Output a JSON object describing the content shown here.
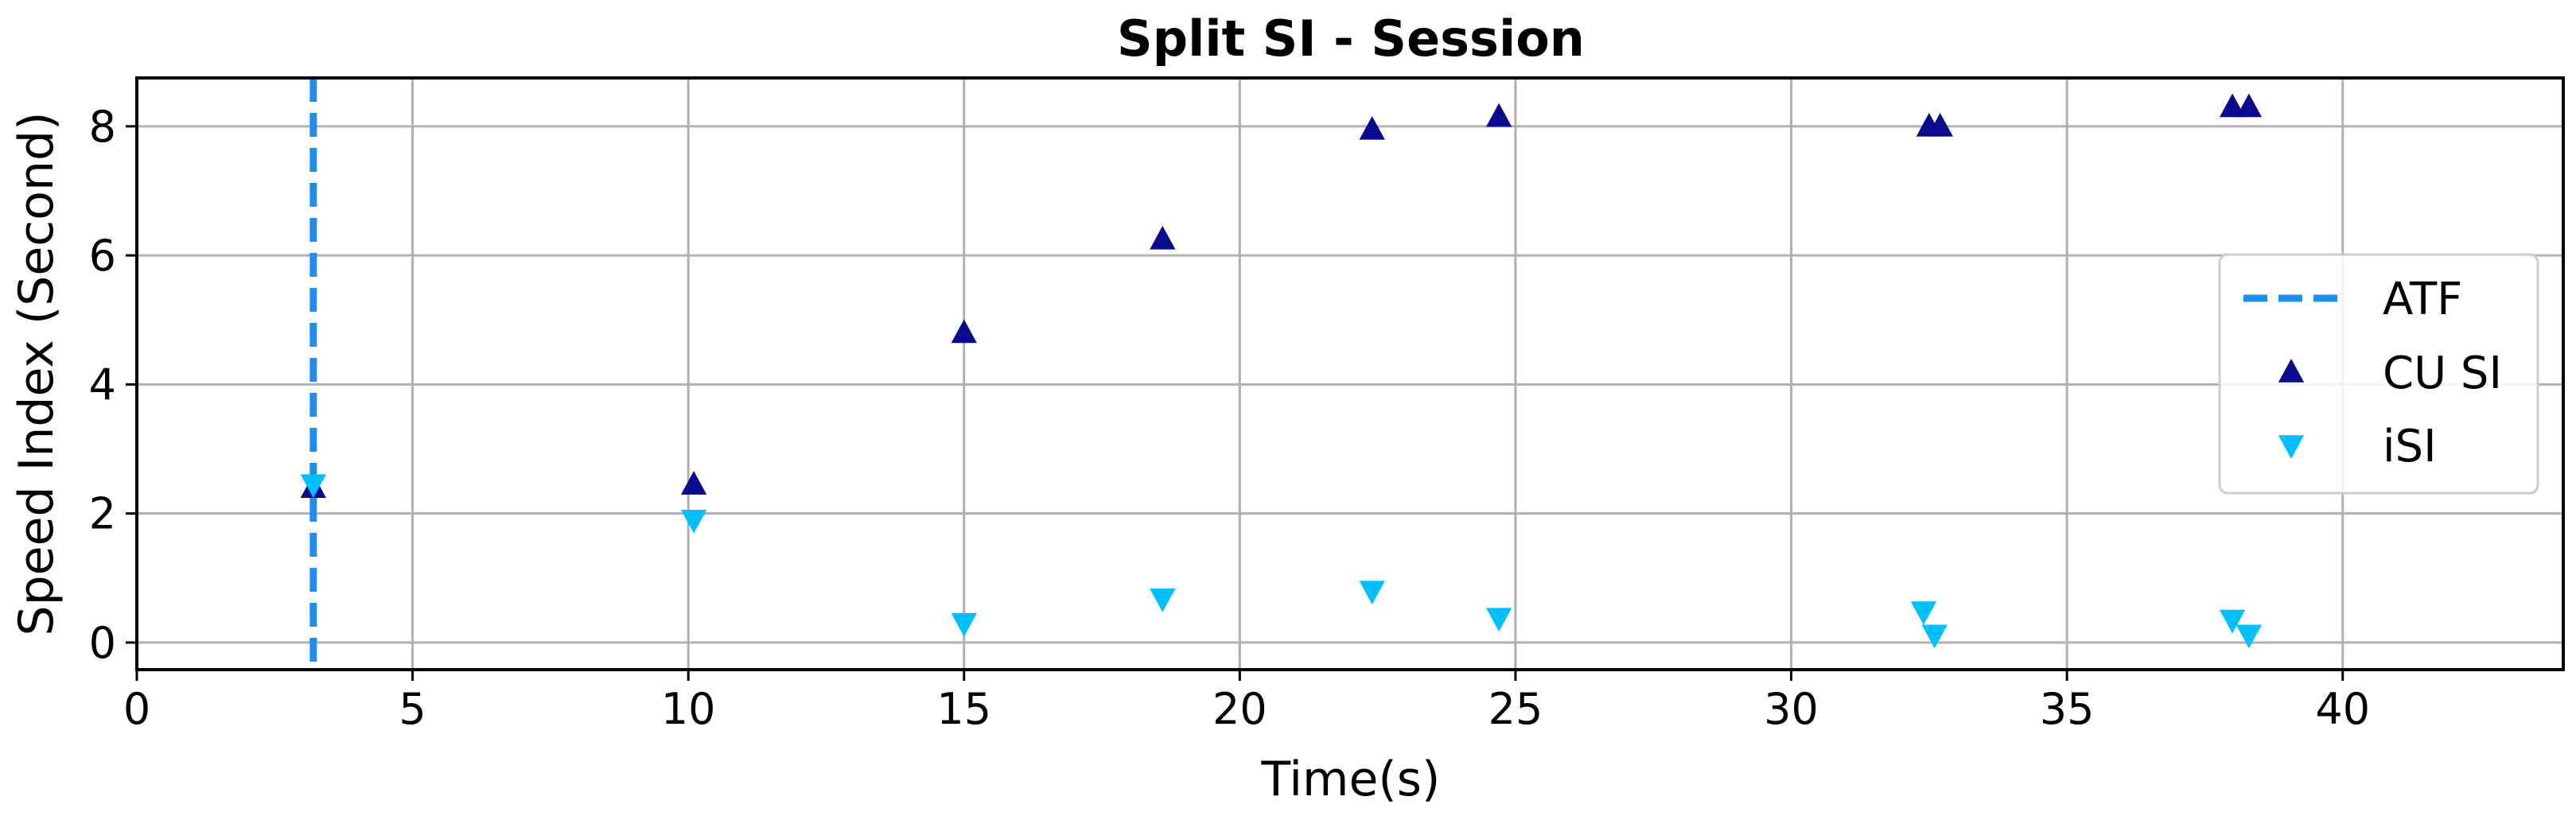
{
  "chart_data": {
    "type": "scatter",
    "title": "Split SI - Session",
    "xlabel": "Time(s)",
    "ylabel": "Speed Index (Second)",
    "xlim": [
      0,
      44
    ],
    "ylim": [
      -0.42,
      8.75
    ],
    "xticks": [
      0,
      5,
      10,
      15,
      20,
      25,
      30,
      35,
      40
    ],
    "yticks": [
      0,
      2,
      4,
      6,
      8
    ],
    "grid": true,
    "legend_position": "right",
    "vline": {
      "name": "ATF",
      "x": 3.2,
      "color": "#1e8ff0",
      "style": "dashed"
    },
    "series": [
      {
        "name": "CU SI",
        "marker": "triangle-up",
        "color": "#0a0a8c",
        "x": [
          3.2,
          10.1,
          15.0,
          18.6,
          22.4,
          24.7,
          32.5,
          32.7,
          38.0,
          38.3
        ],
        "y": [
          2.4,
          2.45,
          4.8,
          6.25,
          7.95,
          8.15,
          8.0,
          8.0,
          8.3,
          8.3
        ]
      },
      {
        "name": "iSI",
        "marker": "triangle-down",
        "color": "#00bfff",
        "x": [
          3.2,
          10.1,
          15.0,
          18.6,
          22.4,
          24.7,
          32.4,
          32.6,
          38.0,
          38.3
        ],
        "y": [
          2.45,
          1.9,
          0.3,
          0.68,
          0.8,
          0.38,
          0.48,
          0.12,
          0.35,
          0.12
        ]
      }
    ]
  }
}
